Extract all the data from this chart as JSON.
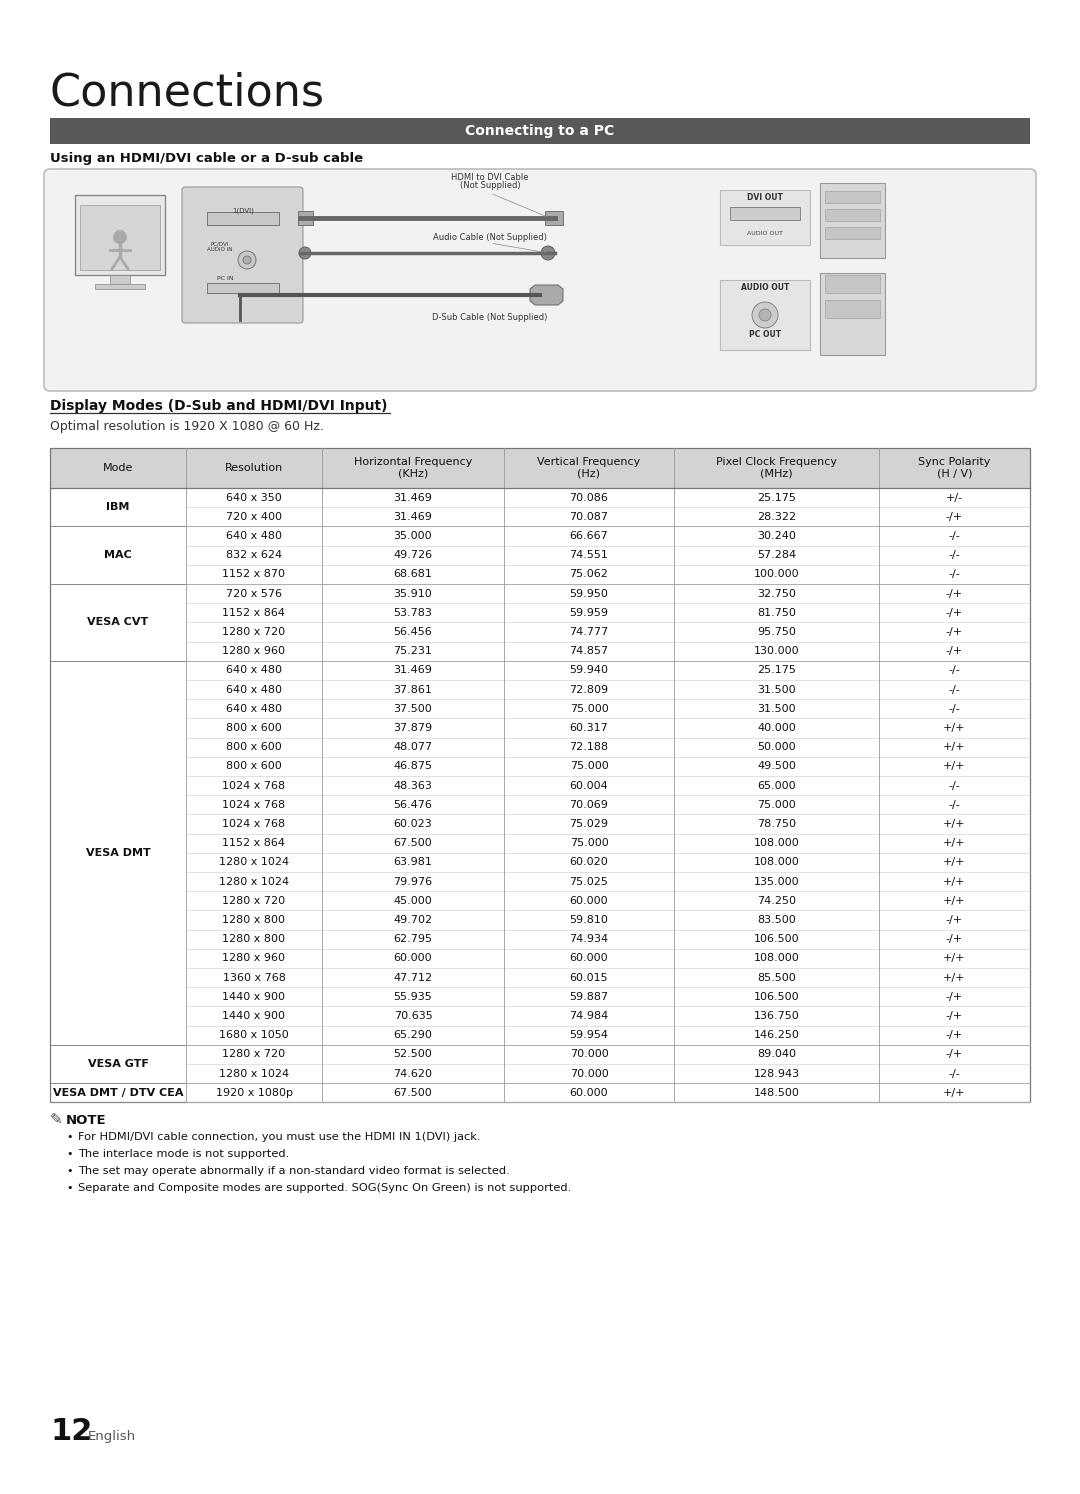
{
  "title": "Connections",
  "section_header": "Connecting to a PC",
  "subsection1": "Using an HDMI/DVI cable or a D-sub cable",
  "subsection2": "Display Modes (D-Sub and HDMI/DVI Input)",
  "optimal_res": "Optimal resolution is 1920 X 1080 @ 60 Hz.",
  "table_headers": [
    "Mode",
    "Resolution",
    "Horizontal Frequency\n(KHz)",
    "Vertical Frequency\n(Hz)",
    "Pixel Clock Frequency\n(MHz)",
    "Sync Polarity\n(H / V)"
  ],
  "table_data": [
    [
      "IBM",
      "640 x 350",
      "31.469",
      "70.086",
      "25.175",
      "+/-"
    ],
    [
      "IBM",
      "720 x 400",
      "31.469",
      "70.087",
      "28.322",
      "-/+"
    ],
    [
      "MAC",
      "640 x 480",
      "35.000",
      "66.667",
      "30.240",
      "-/-"
    ],
    [
      "MAC",
      "832 x 624",
      "49.726",
      "74.551",
      "57.284",
      "-/-"
    ],
    [
      "MAC",
      "1152 x 870",
      "68.681",
      "75.062",
      "100.000",
      "-/-"
    ],
    [
      "VESA CVT",
      "720 x 576",
      "35.910",
      "59.950",
      "32.750",
      "-/+"
    ],
    [
      "VESA CVT",
      "1152 x 864",
      "53.783",
      "59.959",
      "81.750",
      "-/+"
    ],
    [
      "VESA CVT",
      "1280 x 720",
      "56.456",
      "74.777",
      "95.750",
      "-/+"
    ],
    [
      "VESA CVT",
      "1280 x 960",
      "75.231",
      "74.857",
      "130.000",
      "-/+"
    ],
    [
      "VESA DMT",
      "640 x 480",
      "31.469",
      "59.940",
      "25.175",
      "-/-"
    ],
    [
      "VESA DMT",
      "640 x 480",
      "37.861",
      "72.809",
      "31.500",
      "-/-"
    ],
    [
      "VESA DMT",
      "640 x 480",
      "37.500",
      "75.000",
      "31.500",
      "-/-"
    ],
    [
      "VESA DMT",
      "800 x 600",
      "37.879",
      "60.317",
      "40.000",
      "+/+"
    ],
    [
      "VESA DMT",
      "800 x 600",
      "48.077",
      "72.188",
      "50.000",
      "+/+"
    ],
    [
      "VESA DMT",
      "800 x 600",
      "46.875",
      "75.000",
      "49.500",
      "+/+"
    ],
    [
      "VESA DMT",
      "1024 x 768",
      "48.363",
      "60.004",
      "65.000",
      "-/-"
    ],
    [
      "VESA DMT",
      "1024 x 768",
      "56.476",
      "70.069",
      "75.000",
      "-/-"
    ],
    [
      "VESA DMT",
      "1024 x 768",
      "60.023",
      "75.029",
      "78.750",
      "+/+"
    ],
    [
      "VESA DMT",
      "1152 x 864",
      "67.500",
      "75.000",
      "108.000",
      "+/+"
    ],
    [
      "VESA DMT",
      "1280 x 1024",
      "63.981",
      "60.020",
      "108.000",
      "+/+"
    ],
    [
      "VESA DMT",
      "1280 x 1024",
      "79.976",
      "75.025",
      "135.000",
      "+/+"
    ],
    [
      "VESA DMT",
      "1280 x 720",
      "45.000",
      "60.000",
      "74.250",
      "+/+"
    ],
    [
      "VESA DMT",
      "1280 x 800",
      "49.702",
      "59.810",
      "83.500",
      "-/+"
    ],
    [
      "VESA DMT",
      "1280 x 800",
      "62.795",
      "74.934",
      "106.500",
      "-/+"
    ],
    [
      "VESA DMT",
      "1280 x 960",
      "60.000",
      "60.000",
      "108.000",
      "+/+"
    ],
    [
      "VESA DMT",
      "1360 x 768",
      "47.712",
      "60.015",
      "85.500",
      "+/+"
    ],
    [
      "VESA DMT",
      "1440 x 900",
      "55.935",
      "59.887",
      "106.500",
      "-/+"
    ],
    [
      "VESA DMT",
      "1440 x 900",
      "70.635",
      "74.984",
      "136.750",
      "-/+"
    ],
    [
      "VESA DMT",
      "1680 x 1050",
      "65.290",
      "59.954",
      "146.250",
      "-/+"
    ],
    [
      "VESA GTF",
      "1280 x 720",
      "52.500",
      "70.000",
      "89.040",
      "-/+"
    ],
    [
      "VESA GTF",
      "1280 x 1024",
      "74.620",
      "70.000",
      "128.943",
      "-/-"
    ],
    [
      "VESA DMT / DTV CEA",
      "1920 x 1080p",
      "67.500",
      "60.000",
      "148.500",
      "+/+"
    ]
  ],
  "note_title": "NOTE",
  "notes": [
    "For HDMI/DVI cable connection, you must use the HDMI IN 1(DVI) jack.",
    "The interlace mode is not supported.",
    "The set may operate abnormally if a non-standard video format is selected.",
    "Separate and Composite modes are supported. SOG(Sync On Green) is not supported."
  ],
  "page_number": "12",
  "page_lang": "English",
  "bg_color": "#ffffff",
  "header_bg": "#585858",
  "header_fg": "#ffffff",
  "table_header_bg": "#d0d0d0",
  "section_line_color": "#000000"
}
